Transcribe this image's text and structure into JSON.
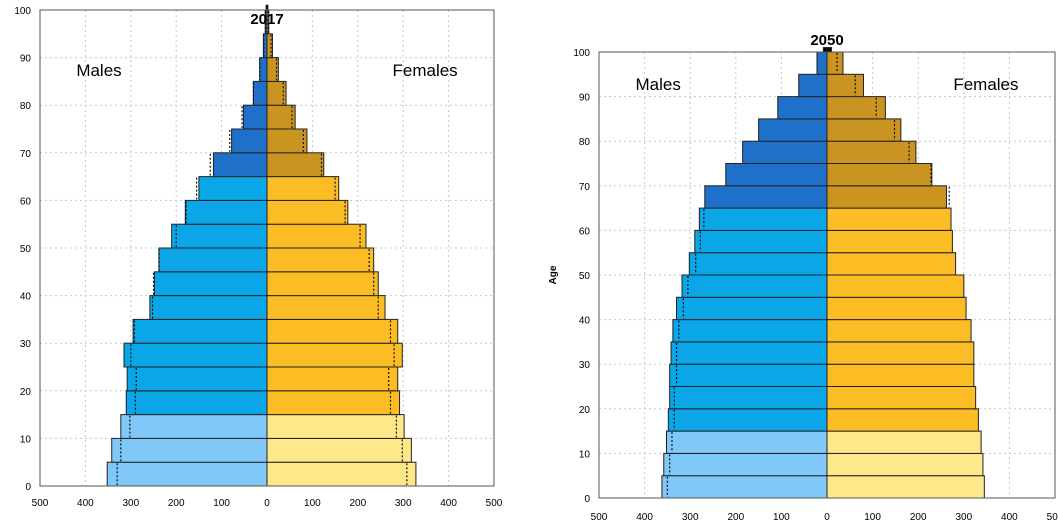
{
  "chart_data": [
    {
      "type": "bar",
      "orientation": "horizontal-population-pyramid",
      "title": "2017",
      "ylabel": "",
      "left_label": "Males",
      "right_label": "Females",
      "x_ticks": [
        "500",
        "400",
        "300",
        "200",
        "100",
        "0",
        "100",
        "200",
        "300",
        "400",
        "500"
      ],
      "y_ticks": [
        "0",
        "10",
        "20",
        "30",
        "40",
        "50",
        "60",
        "70",
        "80",
        "90",
        "100"
      ],
      "xlim": [
        -500,
        500
      ],
      "ylim": [
        0,
        100
      ],
      "grid": true,
      "age_group_start": [
        0,
        5,
        10,
        15,
        20,
        25,
        30,
        35,
        40,
        45,
        50,
        55,
        60,
        65,
        70,
        75,
        80,
        85,
        90,
        95,
        100
      ],
      "series": [
        {
          "name": "Males",
          "values": [
            352,
            342,
            322,
            310,
            308,
            315,
            295,
            258,
            248,
            238,
            210,
            180,
            150,
            118,
            78,
            52,
            30,
            16,
            8,
            4,
            2
          ]
        },
        {
          "name": "Females",
          "values": [
            328,
            318,
            302,
            292,
            288,
            298,
            288,
            260,
            245,
            235,
            218,
            178,
            158,
            125,
            88,
            62,
            42,
            25,
            12,
            4,
            2
          ]
        }
      ],
      "reference_marker_values": {
        "Males": [
          330,
          322,
          302,
          290,
          288,
          300,
          292,
          252,
          250,
          238,
          200,
          178,
          155,
          125,
          82,
          55,
          30,
          16,
          7,
          3,
          1
        ],
        "Females": [
          308,
          298,
          285,
          272,
          268,
          280,
          272,
          245,
          235,
          225,
          205,
          172,
          150,
          120,
          80,
          55,
          36,
          21,
          9,
          3,
          1
        ]
      },
      "colors": {
        "male_young": "#7fc8f8",
        "male_adult": "#0aa6e8",
        "male_old": "#1e70c8",
        "female_young": "#ffe88a",
        "female_adult": "#fbbc24",
        "female_old": "#c99520"
      }
    },
    {
      "type": "bar",
      "orientation": "horizontal-population-pyramid",
      "title": "2050",
      "ylabel": "Age",
      "left_label": "Males",
      "right_label": "Females",
      "x_ticks": [
        "500",
        "400",
        "300",
        "200",
        "100",
        "0",
        "100",
        "200",
        "300",
        "400",
        "500"
      ],
      "y_ticks": [
        "0",
        "10",
        "20",
        "30",
        "40",
        "50",
        "60",
        "70",
        "80",
        "90",
        "100"
      ],
      "xlim": [
        -500,
        500
      ],
      "ylim": [
        0,
        100
      ],
      "grid": true,
      "age_group_start": [
        0,
        5,
        10,
        15,
        20,
        25,
        30,
        35,
        40,
        45,
        50,
        55,
        60,
        65,
        70,
        75,
        80,
        85,
        90,
        95,
        100
      ],
      "series": [
        {
          "name": "Males",
          "values": [
            362,
            358,
            352,
            348,
            345,
            345,
            342,
            338,
            330,
            318,
            302,
            290,
            280,
            268,
            222,
            185,
            150,
            108,
            62,
            22,
            8
          ]
        },
        {
          "name": "Females",
          "values": [
            345,
            342,
            338,
            332,
            326,
            322,
            322,
            316,
            305,
            300,
            282,
            275,
            272,
            262,
            230,
            195,
            162,
            128,
            80,
            35,
            10
          ]
        }
      ],
      "reference_marker_values": {
        "Males": [
          350,
          345,
          340,
          335,
          335,
          330,
          330,
          325,
          315,
          305,
          288,
          278,
          270,
          0,
          0,
          0,
          0,
          0,
          0,
          0,
          0
        ],
        "Females": [
          0,
          0,
          0,
          0,
          0,
          0,
          0,
          0,
          0,
          0,
          0,
          0,
          0,
          268,
          228,
          180,
          148,
          108,
          62,
          22,
          5
        ]
      },
      "colors": {
        "male_young": "#7fc8f8",
        "male_adult": "#0aa6e8",
        "male_old": "#1e70c8",
        "female_young": "#ffe88a",
        "female_adult": "#fbbc24",
        "female_old": "#c99520"
      }
    }
  ]
}
